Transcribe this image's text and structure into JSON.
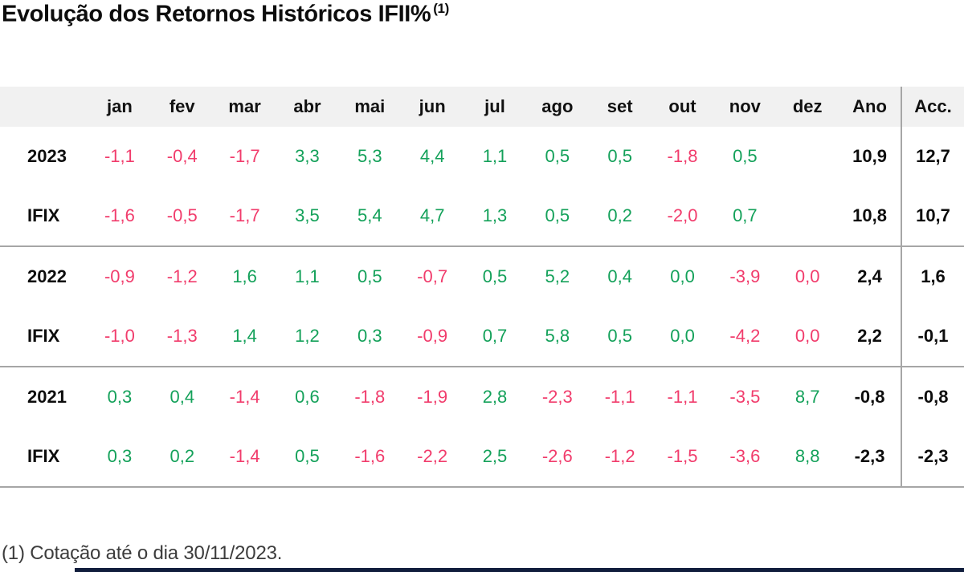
{
  "page": {
    "title": "Evolução dos Retornos Históricos IFII%",
    "title_superscript": "(1)",
    "footnote": "(1) Cotação até o dia 30/11/2023."
  },
  "colors": {
    "positive": "#14a15a",
    "negative": "#f13c6c",
    "total_text": "#0d0d0d",
    "header_bg": "#f1f1f1",
    "divider": "#a6a6a6",
    "footer_bar": "#101d3c"
  },
  "chart_data": {
    "type": "table",
    "title": "Evolução dos Retornos Históricos IFII% (1)",
    "columns": [
      "",
      "jan",
      "fev",
      "mar",
      "abr",
      "mai",
      "jun",
      "jul",
      "ago",
      "set",
      "out",
      "nov",
      "dez",
      "Ano",
      "Acc."
    ],
    "color_legend": {
      "g": "positive-green",
      "r": "negative-pink",
      "t": "total-black-bold",
      "e": "empty"
    },
    "rows": [
      {
        "label": "2023",
        "values": [
          "-1,1",
          "-0,4",
          "-1,7",
          "3,3",
          "5,3",
          "4,4",
          "1,1",
          "0,5",
          "0,5",
          "-1,8",
          "0,5",
          "",
          "10,9",
          "12,7"
        ],
        "colors": [
          "r",
          "r",
          "r",
          "g",
          "g",
          "g",
          "g",
          "g",
          "g",
          "r",
          "g",
          "e",
          "t",
          "t"
        ],
        "group_end": false
      },
      {
        "label": "IFIX",
        "values": [
          "-1,6",
          "-0,5",
          "-1,7",
          "3,5",
          "5,4",
          "4,7",
          "1,3",
          "0,5",
          "0,2",
          "-2,0",
          "0,7",
          "",
          "10,8",
          "10,7"
        ],
        "colors": [
          "r",
          "r",
          "r",
          "g",
          "g",
          "g",
          "g",
          "g",
          "g",
          "r",
          "g",
          "e",
          "t",
          "t"
        ],
        "group_end": true
      },
      {
        "label": "2022",
        "values": [
          "-0,9",
          "-1,2",
          "1,6",
          "1,1",
          "0,5",
          "-0,7",
          "0,5",
          "5,2",
          "0,4",
          "0,0",
          "-3,9",
          "0,0",
          "2,4",
          "1,6"
        ],
        "colors": [
          "r",
          "r",
          "g",
          "g",
          "g",
          "r",
          "g",
          "g",
          "g",
          "g",
          "r",
          "r",
          "t",
          "t"
        ],
        "group_end": false
      },
      {
        "label": "IFIX",
        "values": [
          "-1,0",
          "-1,3",
          "1,4",
          "1,2",
          "0,3",
          "-0,9",
          "0,7",
          "5,8",
          "0,5",
          "0,0",
          "-4,2",
          "0,0",
          "2,2",
          "-0,1"
        ],
        "colors": [
          "r",
          "r",
          "g",
          "g",
          "g",
          "r",
          "g",
          "g",
          "g",
          "g",
          "r",
          "r",
          "t",
          "t"
        ],
        "group_end": true
      },
      {
        "label": "2021",
        "values": [
          "0,3",
          "0,4",
          "-1,4",
          "0,6",
          "-1,8",
          "-1,9",
          "2,8",
          "-2,3",
          "-1,1",
          "-1,1",
          "-3,5",
          "8,7",
          "-0,8",
          "-0,8"
        ],
        "colors": [
          "g",
          "g",
          "r",
          "g",
          "r",
          "r",
          "g",
          "r",
          "r",
          "r",
          "r",
          "g",
          "t",
          "t"
        ],
        "group_end": false
      },
      {
        "label": "IFIX",
        "values": [
          "0,3",
          "0,2",
          "-1,4",
          "0,5",
          "-1,6",
          "-2,2",
          "2,5",
          "-2,6",
          "-1,2",
          "-1,5",
          "-3,6",
          "8,8",
          "-2,3",
          "-2,3"
        ],
        "colors": [
          "g",
          "g",
          "r",
          "g",
          "r",
          "r",
          "g",
          "r",
          "r",
          "r",
          "r",
          "g",
          "t",
          "t"
        ],
        "group_end": true
      }
    ]
  }
}
